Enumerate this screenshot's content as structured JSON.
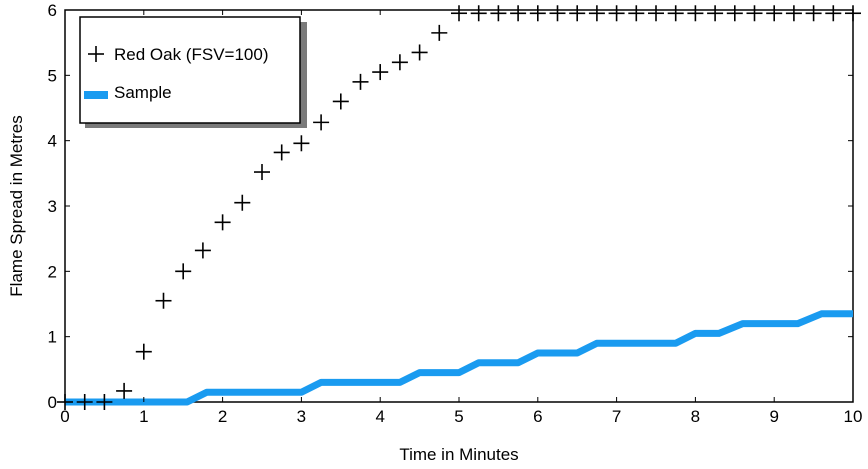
{
  "chart_data": {
    "type": "line",
    "xlabel": "Time in Minutes",
    "ylabel": "Flame Spread in Metres",
    "xlim": [
      0,
      10
    ],
    "ylim": [
      0,
      6
    ],
    "x_ticks": [
      "0",
      "1",
      "2",
      "3",
      "4",
      "5",
      "6",
      "7",
      "8",
      "9",
      "10"
    ],
    "y_ticks": [
      "0",
      "1",
      "2",
      "3",
      "4",
      "5",
      "6"
    ],
    "grid": false,
    "legend_position": "top-left",
    "series": [
      {
        "name": "Red Oak (FSV=100)",
        "marker": "plus",
        "color": "#000000",
        "x": [
          0,
          0.25,
          0.5,
          0.75,
          1.0,
          1.25,
          1.5,
          1.75,
          2.0,
          2.25,
          2.5,
          2.75,
          3.0,
          3.25,
          3.5,
          3.75,
          4.0,
          4.25,
          4.5,
          4.75,
          5.0,
          5.25,
          5.5,
          5.75,
          6.0,
          6.25,
          6.5,
          6.75,
          7.0,
          7.25,
          7.5,
          7.75,
          8.0,
          8.25,
          8.5,
          8.75,
          9.0,
          9.25,
          9.5,
          9.75,
          10.0
        ],
        "y": [
          0,
          0,
          0,
          0.17,
          0.77,
          1.55,
          2.0,
          2.32,
          2.75,
          3.05,
          3.52,
          3.82,
          3.96,
          4.28,
          4.6,
          4.9,
          5.05,
          5.2,
          5.35,
          5.65,
          5.95,
          5.95,
          5.95,
          5.95,
          5.95,
          5.95,
          5.95,
          5.95,
          5.95,
          5.95,
          5.95,
          5.95,
          5.95,
          5.95,
          5.95,
          5.95,
          5.95,
          5.95,
          5.95,
          5.95,
          5.95
        ]
      },
      {
        "name": "Sample",
        "marker": "none",
        "color": "#1a9bf0",
        "x": [
          0,
          1.55,
          1.8,
          3.0,
          3.25,
          4.25,
          4.5,
          5.0,
          5.25,
          5.75,
          6.0,
          6.5,
          6.75,
          7.75,
          8.0,
          8.3,
          8.6,
          9.3,
          9.6,
          10.0
        ],
        "y": [
          0,
          0,
          0.15,
          0.15,
          0.3,
          0.3,
          0.45,
          0.45,
          0.6,
          0.6,
          0.75,
          0.75,
          0.9,
          0.9,
          1.05,
          1.05,
          1.2,
          1.2,
          1.35,
          1.35
        ]
      }
    ]
  }
}
